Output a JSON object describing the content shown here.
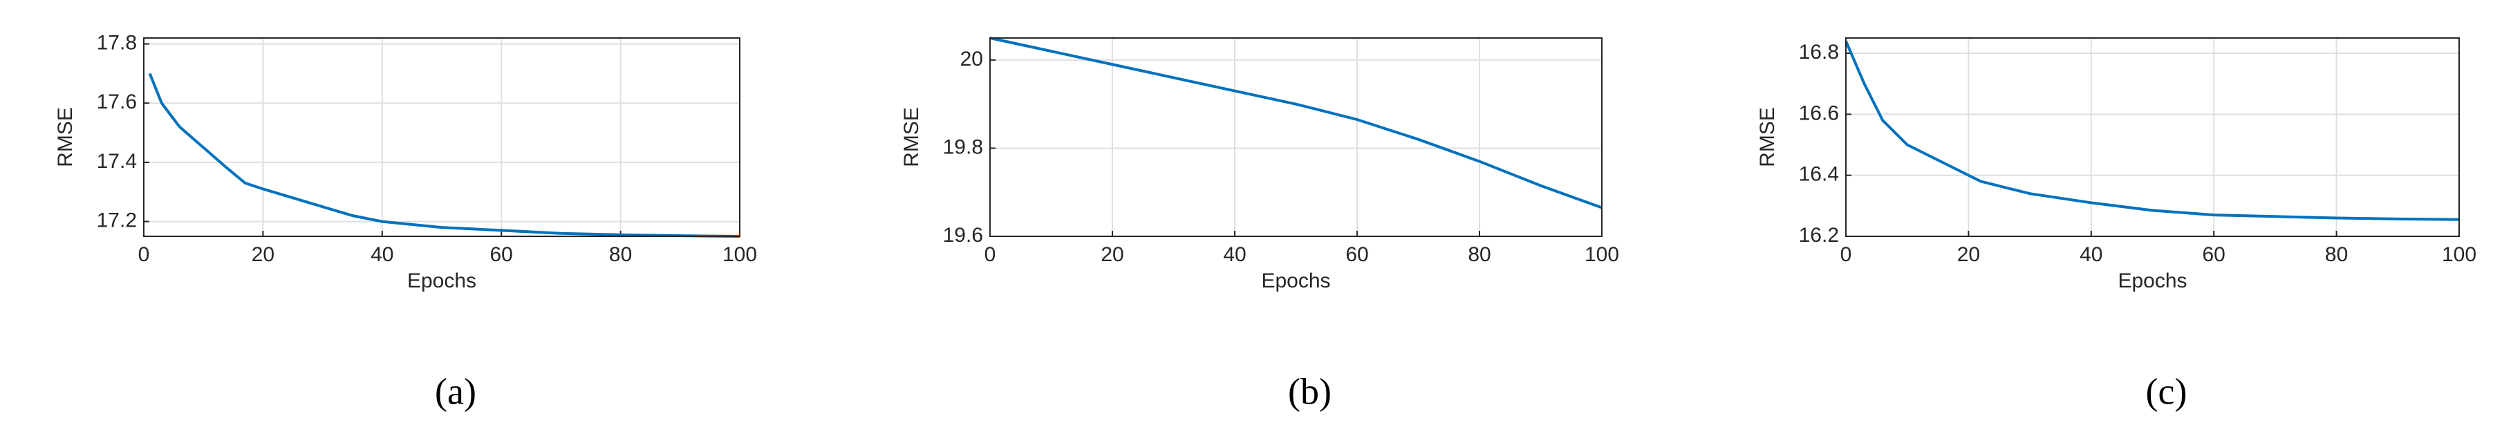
{
  "chart_data": [
    {
      "type": "line",
      "caption": "(a)",
      "xlabel": "Epochs",
      "ylabel": "RMSE",
      "x": [
        1,
        3,
        6,
        10,
        14,
        17,
        20,
        25,
        30,
        35,
        40,
        50,
        60,
        70,
        80,
        90,
        100
      ],
      "series": [
        {
          "color": "#0072bd",
          "values": [
            17.7,
            17.6,
            17.52,
            17.45,
            17.38,
            17.33,
            17.31,
            17.28,
            17.25,
            17.22,
            17.2,
            17.18,
            17.17,
            17.16,
            17.155,
            17.152,
            17.15
          ]
        }
      ],
      "xlim": [
        0,
        100
      ],
      "xticks": [
        0,
        20,
        40,
        60,
        80,
        100
      ],
      "ylim": [
        17.15,
        17.82
      ],
      "yticks": [
        17.2,
        17.4,
        17.6,
        17.8
      ],
      "grid": true
    },
    {
      "type": "line",
      "caption": "(b)",
      "xlabel": "Epochs",
      "ylabel": "RMSE",
      "x": [
        0,
        10,
        20,
        30,
        40,
        50,
        60,
        70,
        80,
        90,
        100
      ],
      "series": [
        {
          "color": "#0072bd",
          "values": [
            20.05,
            20.02,
            19.99,
            19.96,
            19.93,
            19.9,
            19.865,
            19.82,
            19.77,
            19.715,
            19.665
          ]
        }
      ],
      "xlim": [
        0,
        100
      ],
      "xticks": [
        0,
        20,
        40,
        60,
        80,
        100
      ],
      "ylim": [
        19.6,
        20.05
      ],
      "yticks": [
        19.6,
        19.8,
        20
      ],
      "grid": true
    },
    {
      "type": "line",
      "caption": "(c)",
      "xlabel": "Epochs",
      "ylabel": "RMSE",
      "x": [
        0,
        3,
        6,
        10,
        15,
        22,
        30,
        40,
        50,
        60,
        70,
        80,
        90,
        100
      ],
      "series": [
        {
          "color": "#0072bd",
          "values": [
            16.84,
            16.7,
            16.58,
            16.5,
            16.45,
            16.38,
            16.34,
            16.31,
            16.285,
            16.27,
            16.265,
            16.26,
            16.257,
            16.255
          ]
        }
      ],
      "xlim": [
        0,
        100
      ],
      "xticks": [
        0,
        20,
        40,
        60,
        80,
        100
      ],
      "ylim": [
        16.2,
        16.85
      ],
      "yticks": [
        16.2,
        16.4,
        16.6,
        16.8
      ],
      "grid": true
    }
  ]
}
